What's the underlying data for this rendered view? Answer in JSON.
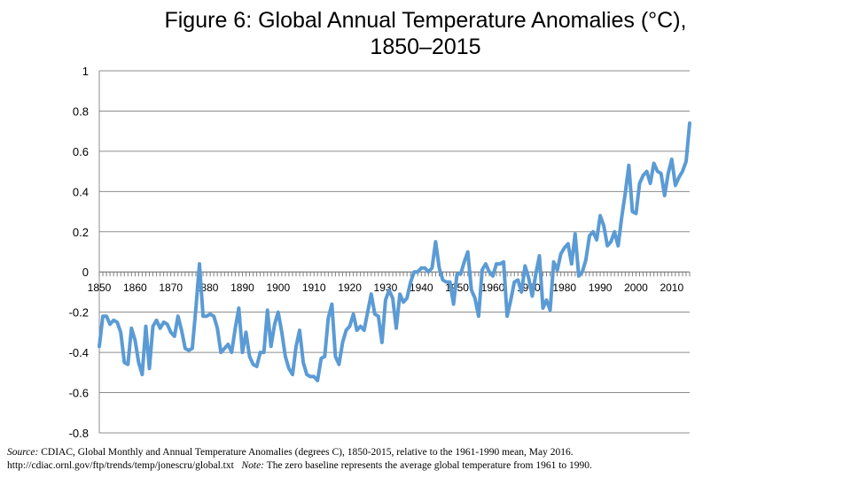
{
  "chart_data": {
    "type": "line",
    "title": "Figure 6: Global Annual Temperature Anomalies (°C), 1850–2015",
    "xlabel": "",
    "ylabel": "",
    "xlim": [
      1850,
      2015
    ],
    "ylim": [
      -0.8,
      1
    ],
    "y_ticks": [
      "1",
      "0.8",
      "0.6",
      "0.4",
      "0.2",
      "0",
      "-0.2",
      "-0.4",
      "-0.6",
      "-0.8"
    ],
    "y_tick_values": [
      1,
      0.8,
      0.6,
      0.4,
      0.2,
      0,
      -0.2,
      -0.4,
      -0.6,
      -0.8
    ],
    "x_ticks": [
      "1850",
      "1860",
      "1870",
      "1880",
      "1890",
      "1900",
      "1910",
      "1920",
      "1930",
      "1940",
      "1950",
      "1960",
      "1970",
      "1980",
      "1990",
      "2000",
      "2010"
    ],
    "x_tick_values": [
      1850,
      1860,
      1870,
      1880,
      1890,
      1900,
      1910,
      1920,
      1930,
      1940,
      1950,
      1960,
      1970,
      1980,
      1990,
      2000,
      2010
    ],
    "grid": true,
    "line_color": "#5b9bd5",
    "series": [
      {
        "x": [
          1850,
          1851,
          1852,
          1853,
          1854,
          1855,
          1856,
          1857,
          1858,
          1859,
          1860,
          1861,
          1862,
          1863,
          1864,
          1865,
          1866,
          1867,
          1868,
          1869,
          1870,
          1871,
          1872,
          1873,
          1874,
          1875,
          1876,
          1877,
          1878,
          1879,
          1880,
          1881,
          1882,
          1883,
          1884,
          1885,
          1886,
          1887,
          1888,
          1889,
          1890,
          1891,
          1892,
          1893,
          1894,
          1895,
          1896,
          1897,
          1898,
          1899,
          1900,
          1901,
          1902,
          1903,
          1904,
          1905,
          1906,
          1907,
          1908,
          1909,
          1910,
          1911,
          1912,
          1913,
          1914,
          1915,
          1916,
          1917,
          1918,
          1919,
          1920,
          1921,
          1922,
          1923,
          1924,
          1925,
          1926,
          1927,
          1928,
          1929,
          1930,
          1931,
          1932,
          1933,
          1934,
          1935,
          1936,
          1937,
          1938,
          1939,
          1940,
          1941,
          1942,
          1943,
          1944,
          1945,
          1946,
          1947,
          1948,
          1949,
          1950,
          1951,
          1952,
          1953,
          1954,
          1955,
          1956,
          1957,
          1958,
          1959,
          1960,
          1961,
          1962,
          1963,
          1964,
          1965,
          1966,
          1967,
          1968,
          1969,
          1970,
          1971,
          1972,
          1973,
          1974,
          1975,
          1976,
          1977,
          1978,
          1979,
          1980,
          1981,
          1982,
          1983,
          1984,
          1985,
          1986,
          1987,
          1988,
          1989,
          1990,
          1991,
          1992,
          1993,
          1994,
          1995,
          1996,
          1997,
          1998,
          1999,
          2000,
          2001,
          2002,
          2003,
          2004,
          2005,
          2006,
          2007,
          2008,
          2009,
          2010,
          2011,
          2012,
          2013,
          2014,
          2015
        ],
        "values": [
          -0.37,
          -0.22,
          -0.22,
          -0.26,
          -0.24,
          -0.25,
          -0.3,
          -0.45,
          -0.46,
          -0.28,
          -0.34,
          -0.45,
          -0.51,
          -0.27,
          -0.48,
          -0.27,
          -0.24,
          -0.28,
          -0.25,
          -0.26,
          -0.3,
          -0.32,
          -0.22,
          -0.29,
          -0.38,
          -0.39,
          -0.38,
          -0.18,
          0.04,
          -0.22,
          -0.22,
          -0.21,
          -0.22,
          -0.28,
          -0.4,
          -0.38,
          -0.36,
          -0.4,
          -0.28,
          -0.18,
          -0.4,
          -0.3,
          -0.42,
          -0.46,
          -0.47,
          -0.4,
          -0.4,
          -0.19,
          -0.37,
          -0.26,
          -0.2,
          -0.3,
          -0.42,
          -0.48,
          -0.51,
          -0.37,
          -0.29,
          -0.45,
          -0.51,
          -0.52,
          -0.52,
          -0.54,
          -0.43,
          -0.42,
          -0.23,
          -0.16,
          -0.42,
          -0.46,
          -0.35,
          -0.29,
          -0.27,
          -0.21,
          -0.29,
          -0.27,
          -0.29,
          -0.2,
          -0.11,
          -0.21,
          -0.22,
          -0.35,
          -0.14,
          -0.09,
          -0.13,
          -0.28,
          -0.11,
          -0.15,
          -0.13,
          -0.05,
          0.0,
          0.0,
          0.02,
          0.02,
          0.0,
          0.02,
          0.15,
          0.02,
          -0.04,
          -0.05,
          -0.05,
          -0.16,
          -0.01,
          -0.01,
          0.05,
          0.1,
          -0.09,
          -0.13,
          -0.22,
          0.01,
          0.04,
          0.0,
          -0.02,
          0.04,
          0.04,
          0.05,
          -0.22,
          -0.14,
          -0.05,
          -0.04,
          -0.1,
          0.03,
          -0.03,
          -0.12,
          -0.01,
          0.08,
          -0.18,
          -0.14,
          -0.19,
          0.05,
          0.01,
          0.09,
          0.12,
          0.14,
          0.04,
          0.19,
          -0.02,
          0.0,
          0.06,
          0.18,
          0.2,
          0.16,
          0.28,
          0.23,
          0.13,
          0.15,
          0.2,
          0.13,
          0.27,
          0.39,
          0.53,
          0.3,
          0.29,
          0.44,
          0.48,
          0.5,
          0.44,
          0.54,
          0.5,
          0.49,
          0.38,
          0.49,
          0.56,
          0.43,
          0.47,
          0.5,
          0.55,
          0.74
        ]
      }
    ]
  },
  "source_note": {
    "source_label": "Source:",
    "source_text": " CDIAC, Global Monthly and Annual Temperature Anomalies (degrees C), 1850-2015, relative to the 1961-1990 mean, May 2016.",
    "url_text": "http://cdiac.ornl.gov/ftp/trends/temp/jonescru/global.txt",
    "note_label": "Note:",
    "note_text": " The zero baseline represents the average global temperature from 1961 to 1990."
  }
}
